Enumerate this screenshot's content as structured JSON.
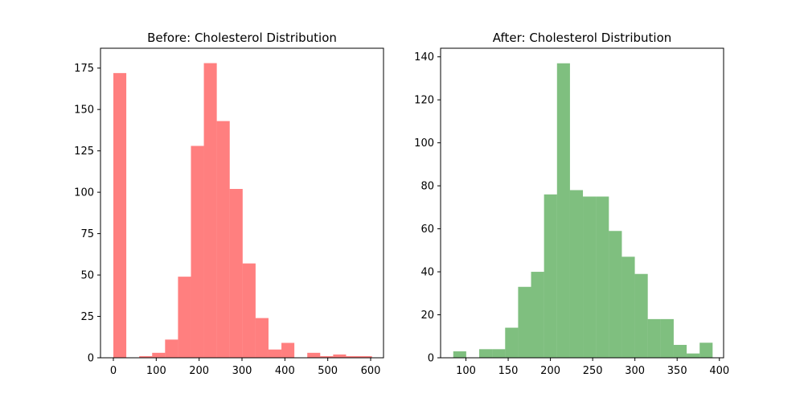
{
  "chart_data": [
    {
      "type": "bar",
      "title": "Before: Cholesterol Distribution",
      "xlabel": "",
      "ylabel": "",
      "xlim": [
        -30,
        630
      ],
      "ylim": [
        0,
        187
      ],
      "xticks": [
        0,
        100,
        200,
        300,
        400,
        500,
        600
      ],
      "yticks": [
        0,
        25,
        50,
        75,
        100,
        125,
        150,
        175
      ],
      "grid": false,
      "color": "#ff0000",
      "opacity": 0.5,
      "bin_edges": [
        0,
        30.15,
        60.3,
        90.45,
        120.6,
        150.75,
        180.9,
        211.05,
        241.2,
        271.35,
        301.5,
        331.65,
        361.8,
        391.95,
        422.1,
        452.25,
        482.4,
        512.55,
        542.7,
        572.85,
        603
      ],
      "values": [
        172,
        0,
        1,
        3,
        11,
        49,
        128,
        178,
        143,
        102,
        57,
        24,
        5,
        9,
        0,
        3,
        1,
        2,
        1,
        1
      ]
    },
    {
      "type": "bar",
      "title": "After: Cholesterol Distribution",
      "xlabel": "",
      "ylabel": "",
      "xlim": [
        70,
        405
      ],
      "ylim": [
        0,
        144
      ],
      "xticks": [
        100,
        150,
        200,
        250,
        300,
        350,
        400
      ],
      "yticks": [
        0,
        20,
        40,
        60,
        80,
        100,
        120,
        140
      ],
      "grid": false,
      "color": "#008000",
      "opacity": 0.5,
      "bin_edges": [
        85,
        100.35,
        115.7,
        131.05,
        146.4,
        161.75,
        177.1,
        192.45,
        207.8,
        223.15,
        238.5,
        253.85,
        269.2,
        284.55,
        299.9,
        315.25,
        330.6,
        345.95,
        361.3,
        376.65,
        392
      ],
      "values": [
        3,
        0,
        4,
        4,
        14,
        33,
        40,
        76,
        137,
        78,
        75,
        75,
        59,
        47,
        39,
        18,
        18,
        6,
        2,
        7
      ]
    }
  ]
}
